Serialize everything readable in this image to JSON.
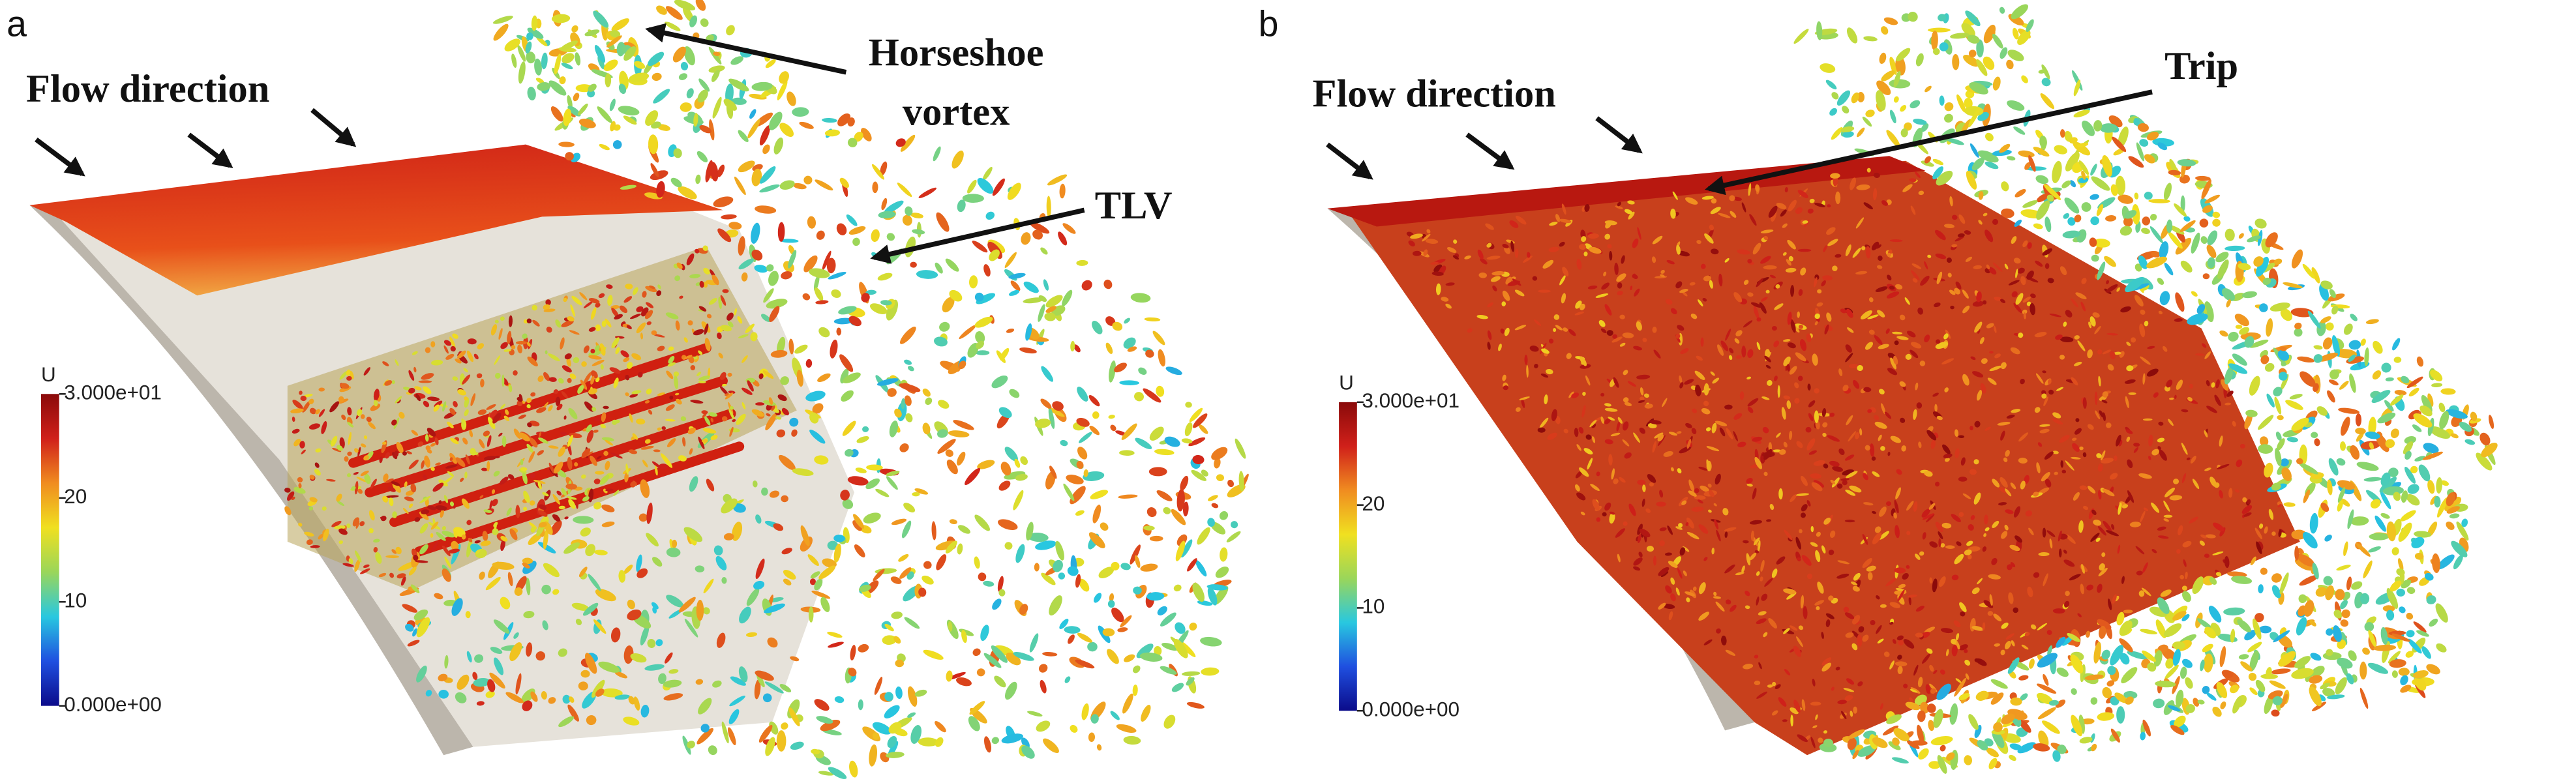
{
  "panels": [
    {
      "label": "a",
      "annotations": [
        {
          "lines": [
            "Flow direction"
          ]
        },
        {
          "lines": [
            "Horseshoe",
            "vortex"
          ]
        },
        {
          "lines": [
            "TLV"
          ]
        }
      ],
      "colorbar": {
        "title": "U",
        "range": [
          0,
          30
        ],
        "ticks": [
          {
            "value": 30,
            "label": "3.000e+01"
          },
          20,
          10,
          {
            "value": 0,
            "label": "0.000e+00"
          }
        ],
        "colors": [
          "#0b0b8a",
          "#1f4fe0",
          "#28c8e0",
          "#9ad65a",
          "#f0e020",
          "#f08c20",
          "#d0201a",
          "#8a0a0a"
        ]
      }
    },
    {
      "label": "b",
      "annotations": [
        {
          "lines": [
            "Flow direction"
          ]
        },
        {
          "lines": [
            "Trip"
          ]
        }
      ],
      "colorbar": {
        "title": "U",
        "range": [
          0,
          30
        ],
        "ticks": [
          {
            "value": 30,
            "label": "3.000e+01"
          },
          20,
          10,
          {
            "value": 0,
            "label": "0.000e+00"
          }
        ],
        "colors": [
          "#0b0b8a",
          "#1f4fe0",
          "#28c8e0",
          "#9ad65a",
          "#f0e020",
          "#f08c20",
          "#d0201a",
          "#8a0a0a"
        ]
      }
    }
  ]
}
